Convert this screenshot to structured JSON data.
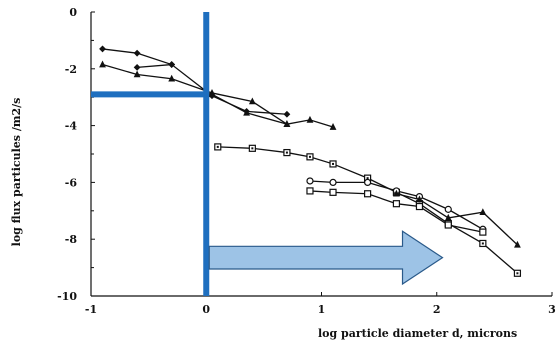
{
  "chart_data": {
    "type": "line",
    "xlabel": "log particle diameter d, microns",
    "ylabel": "log flux particules /m2/s",
    "xlim": [
      -1,
      3
    ],
    "ylim": [
      -10,
      0
    ],
    "xticks": [
      "-1",
      "0",
      "1",
      "2",
      "3"
    ],
    "yticks": [
      "0",
      "-2",
      "-4",
      "-6",
      "-8",
      "-10"
    ],
    "grid": false,
    "series": [
      {
        "marker": "diamond",
        "x": [
          -0.9,
          -0.6,
          -0.3,
          0.05,
          0.35,
          0.7
        ],
        "y": [
          -1.3,
          -1.45,
          -1.85,
          -2.95,
          -3.5,
          -3.6
        ]
      },
      {
        "marker": "triangle",
        "x": [
          -0.9,
          -0.6,
          -0.3,
          0.05,
          0.4,
          0.7,
          0.9,
          1.1
        ],
        "y": [
          -1.85,
          -2.2,
          -2.35,
          -2.85,
          -3.15,
          -3.95,
          -3.8,
          -4.05
        ]
      },
      {
        "marker": "diamond",
        "x": [
          -0.6,
          -0.3
        ],
        "y": [
          -1.95,
          -1.85
        ]
      },
      {
        "marker": "triangle",
        "x": [
          0.05,
          0.35,
          0.7
        ],
        "y": [
          -2.9,
          -3.55,
          -3.95
        ]
      },
      {
        "marker": "square-dot",
        "x": [
          0.1,
          0.4,
          0.7,
          0.9,
          1.1,
          1.4,
          1.65,
          1.85,
          2.1,
          2.4,
          2.7
        ],
        "y": [
          -4.75,
          -4.8,
          -4.95,
          -5.1,
          -5.35,
          -5.85,
          -6.35,
          -6.75,
          -7.45,
          -8.15,
          -9.2
        ]
      },
      {
        "marker": "circle",
        "x": [
          0.9,
          1.1,
          1.4,
          1.65,
          1.85,
          2.1,
          2.4
        ],
        "y": [
          -5.95,
          -6.0,
          -6.0,
          -6.3,
          -6.5,
          -6.95,
          -7.65
        ]
      },
      {
        "marker": "square",
        "x": [
          0.9,
          1.1,
          1.4,
          1.65,
          1.85,
          2.1,
          2.4
        ],
        "y": [
          -6.3,
          -6.35,
          -6.4,
          -6.75,
          -6.85,
          -7.5,
          -7.75
        ]
      },
      {
        "marker": "triangle",
        "x": [
          1.65,
          1.85,
          2.1,
          2.4,
          2.7
        ],
        "y": [
          -6.4,
          -6.6,
          -7.25,
          -7.05,
          -8.2
        ]
      }
    ],
    "annotations": {
      "vertical_line_x": 0,
      "horizontal_marker_y": -2.9,
      "arrow_from_x": 0,
      "arrow_to_x": 2.05,
      "arrow_y_range": [
        -8.25,
        -9.05
      ],
      "highlight_color": "#1f6fbf",
      "arrow_fill": "#9dc3e6",
      "arrow_stroke": "#2a5a8a"
    }
  }
}
